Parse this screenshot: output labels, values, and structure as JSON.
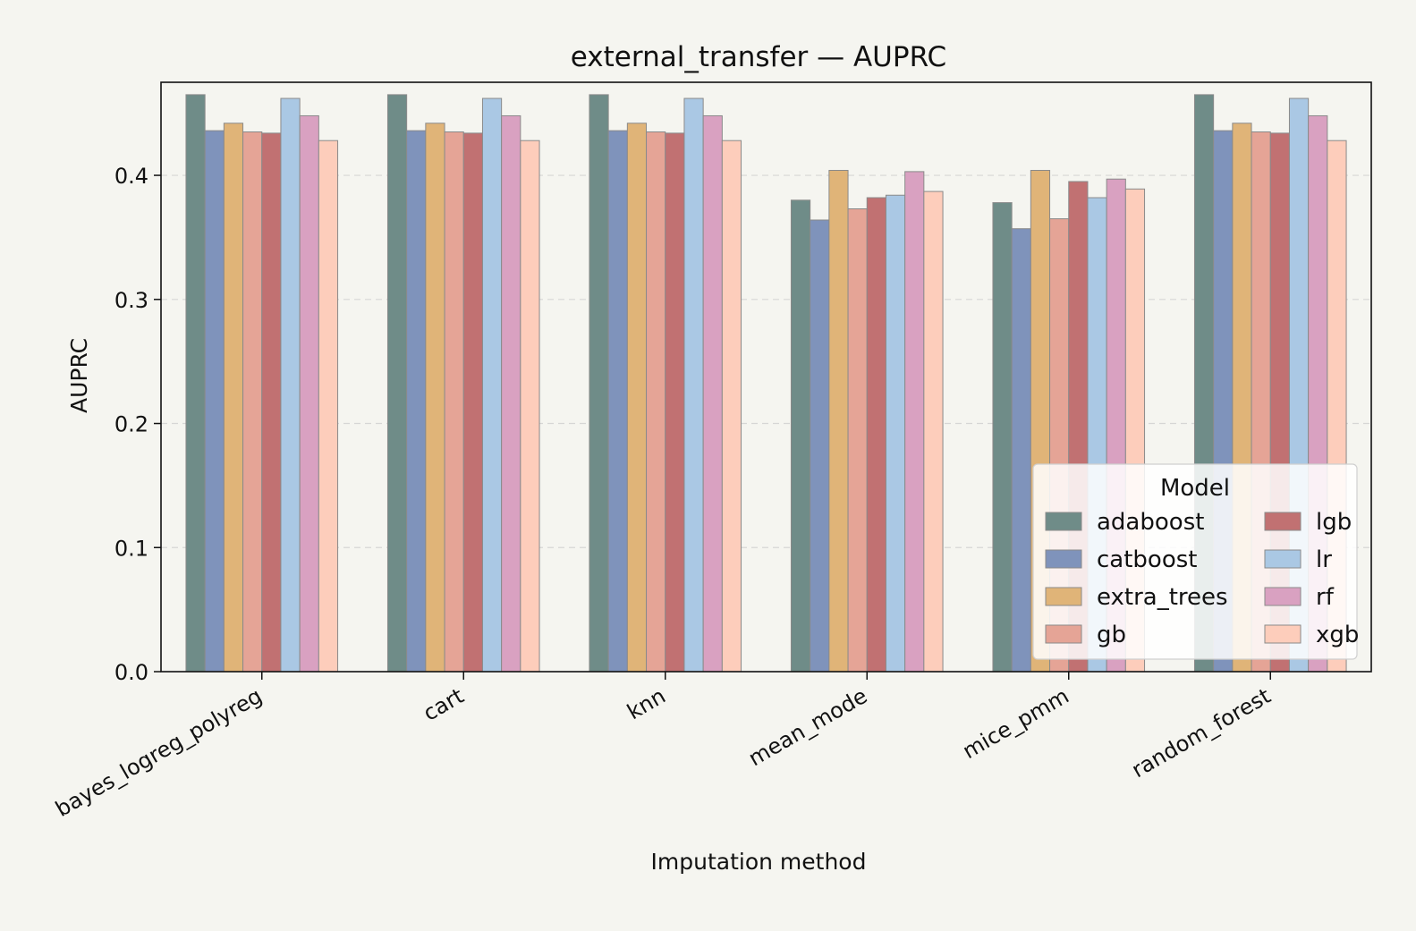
{
  "chart_data": {
    "type": "bar",
    "title": "external_transfer — AUPRC",
    "xlabel": "Imputation method",
    "ylabel": "AUPRC",
    "ylim": [
      0,
      0.475
    ],
    "yticks": [
      0.0,
      0.1,
      0.2,
      0.3,
      0.4
    ],
    "ytick_labels": [
      "0.0",
      "0.1",
      "0.2",
      "0.3",
      "0.4"
    ],
    "grid": "horizontal dashed",
    "categories": [
      "bayes_logreg_polyreg",
      "cart",
      "knn",
      "mean_mode",
      "mice_pmm",
      "random_forest"
    ],
    "legend": {
      "title": "Model",
      "placement": "lower-right",
      "columns": 2
    },
    "series": [
      {
        "name": "adaboost",
        "color": "#6f8c88",
        "values": [
          0.465,
          0.465,
          0.465,
          0.38,
          0.378,
          0.465
        ]
      },
      {
        "name": "catboost",
        "color": "#7f93bb",
        "values": [
          0.436,
          0.436,
          0.436,
          0.364,
          0.357,
          0.436
        ]
      },
      {
        "name": "extra_trees",
        "color": "#e0b478",
        "values": [
          0.442,
          0.442,
          0.442,
          0.404,
          0.404,
          0.442
        ]
      },
      {
        "name": "gb",
        "color": "#e5a496",
        "values": [
          0.435,
          0.435,
          0.435,
          0.373,
          0.365,
          0.435
        ]
      },
      {
        "name": "lgb",
        "color": "#c17172",
        "values": [
          0.434,
          0.434,
          0.434,
          0.382,
          0.395,
          0.434
        ]
      },
      {
        "name": "lr",
        "color": "#aac8e4",
        "values": [
          0.462,
          0.462,
          0.462,
          0.384,
          0.382,
          0.462
        ]
      },
      {
        "name": "rf",
        "color": "#d9a1c1",
        "values": [
          0.448,
          0.448,
          0.448,
          0.403,
          0.397,
          0.448
        ]
      },
      {
        "name": "xgb",
        "color": "#fdcdbb",
        "values": [
          0.428,
          0.428,
          0.428,
          0.387,
          0.389,
          0.428
        ]
      }
    ]
  }
}
